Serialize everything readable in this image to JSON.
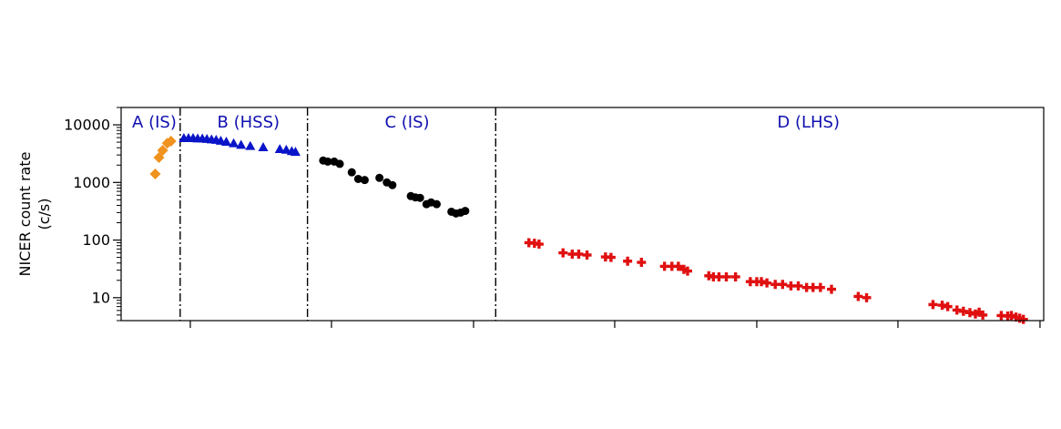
{
  "chart_data": {
    "type": "scatter",
    "title": "",
    "xlabel": "",
    "ylabel_lines": [
      "NICER count rate",
      "(c/s)"
    ],
    "yscale": "log",
    "ylim": [
      4,
      20000
    ],
    "xlim": [
      0,
      100
    ],
    "y_ticks": [
      10,
      100,
      1000,
      10000
    ],
    "y_tick_labels": [
      "10",
      "100",
      "1000",
      "10000"
    ],
    "x_ticks": [
      7.5,
      22.8,
      38.2,
      53.5,
      68.9,
      84.2,
      99.6
    ],
    "x_tick_labels": [
      "",
      "",
      "",
      "",
      "",
      "",
      ""
    ],
    "grid": false,
    "boundaries": [
      6.4,
      20.2,
      40.6
    ],
    "regions": [
      {
        "label": "A (IS)",
        "x_center": 3.6
      },
      {
        "label": "B (HSS)",
        "x_center": 13.8
      },
      {
        "label": "C (IS)",
        "x_center": 31.0
      },
      {
        "label": "D (LHS)",
        "x_center": 74.5
      }
    ],
    "series": [
      {
        "marker": "diamond",
        "color": "#f0921e",
        "points": [
          [
            3.7,
            1400
          ],
          [
            4.1,
            2700
          ],
          [
            4.5,
            3600
          ],
          [
            5.0,
            4800
          ],
          [
            5.4,
            5200
          ]
        ]
      },
      {
        "marker": "triangle",
        "color": "#0a14c8",
        "points": [
          [
            6.8,
            5900
          ],
          [
            7.3,
            5900
          ],
          [
            7.8,
            5900
          ],
          [
            8.3,
            5800
          ],
          [
            8.8,
            5800
          ],
          [
            9.3,
            5700
          ],
          [
            9.8,
            5600
          ],
          [
            10.3,
            5500
          ],
          [
            10.8,
            5300
          ],
          [
            11.4,
            5100
          ],
          [
            12.2,
            4800
          ],
          [
            13.0,
            4500
          ],
          [
            14.0,
            4300
          ],
          [
            15.4,
            4100
          ],
          [
            17.2,
            3800
          ],
          [
            17.9,
            3700
          ],
          [
            18.5,
            3500
          ],
          [
            18.9,
            3400
          ]
        ]
      },
      {
        "marker": "circle",
        "color": "#000000",
        "points": [
          [
            21.9,
            2400
          ],
          [
            22.4,
            2300
          ],
          [
            23.1,
            2300
          ],
          [
            23.7,
            2100
          ],
          [
            25.0,
            1500
          ],
          [
            25.7,
            1150
          ],
          [
            26.4,
            1100
          ],
          [
            28.0,
            1200
          ],
          [
            28.8,
            1000
          ],
          [
            29.4,
            900
          ],
          [
            31.4,
            580
          ],
          [
            31.9,
            550
          ],
          [
            32.4,
            540
          ],
          [
            33.1,
            420
          ],
          [
            33.6,
            450
          ],
          [
            34.2,
            420
          ],
          [
            35.8,
            310
          ],
          [
            36.3,
            290
          ],
          [
            36.8,
            300
          ],
          [
            37.3,
            320
          ]
        ]
      },
      {
        "marker": "plus",
        "color": "#e01010",
        "points": [
          [
            44.2,
            90
          ],
          [
            44.8,
            88
          ],
          [
            45.3,
            85
          ],
          [
            47.9,
            60
          ],
          [
            48.9,
            57
          ],
          [
            49.6,
            57
          ],
          [
            50.5,
            55
          ],
          [
            52.5,
            51
          ],
          [
            53.1,
            50
          ],
          [
            54.9,
            43
          ],
          [
            56.4,
            41
          ],
          [
            58.9,
            35
          ],
          [
            59.7,
            35
          ],
          [
            60.4,
            35
          ],
          [
            61.0,
            31
          ],
          [
            61.4,
            29
          ],
          [
            63.7,
            24
          ],
          [
            64.2,
            23
          ],
          [
            64.8,
            23
          ],
          [
            65.6,
            23
          ],
          [
            66.6,
            23
          ],
          [
            68.2,
            19
          ],
          [
            68.9,
            19
          ],
          [
            69.4,
            19
          ],
          [
            70.0,
            18
          ],
          [
            70.9,
            17
          ],
          [
            71.7,
            17
          ],
          [
            72.6,
            16
          ],
          [
            73.4,
            16
          ],
          [
            74.3,
            15
          ],
          [
            75.0,
            15
          ],
          [
            75.8,
            15
          ],
          [
            77.0,
            14
          ],
          [
            79.9,
            10.5
          ],
          [
            80.8,
            10
          ],
          [
            88.0,
            7.6
          ],
          [
            89.0,
            7.4
          ],
          [
            89.6,
            7.0
          ],
          [
            90.6,
            6.1
          ],
          [
            91.3,
            5.8
          ],
          [
            92.0,
            5.5
          ],
          [
            92.6,
            5.2
          ],
          [
            93.0,
            5.6
          ],
          [
            93.4,
            5.0
          ],
          [
            95.4,
            4.9
          ],
          [
            96.1,
            4.8
          ],
          [
            96.5,
            4.9
          ],
          [
            97.0,
            4.6
          ],
          [
            97.4,
            4.4
          ],
          [
            97.8,
            4.2
          ]
        ]
      }
    ]
  }
}
